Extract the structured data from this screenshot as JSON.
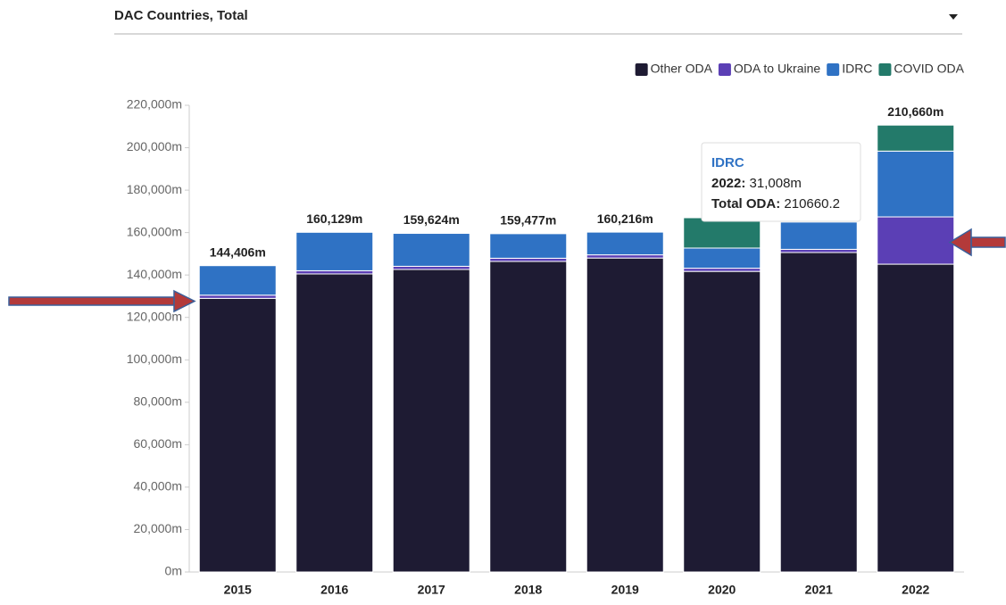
{
  "selector": {
    "label": "DAC Countries, Total"
  },
  "chart_data": {
    "type": "stacked-bar",
    "categories": [
      "2015",
      "2016",
      "2017",
      "2018",
      "2019",
      "2020",
      "2021",
      "2022"
    ],
    "series": [
      {
        "name": "Other ODA",
        "color": "#1e1b33",
        "values": [
          129000,
          140500,
          142600,
          146400,
          148000,
          141700,
          150600,
          145100
        ]
      },
      {
        "name": "ODA to Ukraine",
        "color": "#5b3fb5",
        "values": [
          1500,
          1500,
          1500,
          1500,
          1500,
          1500,
          1500,
          22300
        ]
      },
      {
        "name": "IDRC",
        "color": "#2f72c4",
        "values": [
          13906,
          18129,
          15524,
          11577,
          10716,
          9500,
          12900,
          31008
        ]
      },
      {
        "name": "COVID ODA",
        "color": "#237a6a",
        "values": [
          0,
          0,
          0,
          0,
          0,
          14300,
          19000,
          12252
        ]
      }
    ],
    "totals": {
      "values": [
        144406,
        160129,
        159624,
        159477,
        160216,
        null,
        null,
        210660
      ],
      "value_labels": [
        "144,406m",
        "160,129m",
        "159,624m",
        "159,477m",
        "160,216m",
        null,
        null,
        "210,660m"
      ]
    },
    "ylim": [
      0,
      220000
    ],
    "yticks": [
      {
        "value": 0,
        "label": "0m"
      },
      {
        "value": 20000,
        "label": "20,000m"
      },
      {
        "value": 40000,
        "label": "40,000m"
      },
      {
        "value": 60000,
        "label": "60,000m"
      },
      {
        "value": 80000,
        "label": "80,000m"
      },
      {
        "value": 100000,
        "label": "100,000m"
      },
      {
        "value": 120000,
        "label": "120,000m"
      },
      {
        "value": 140000,
        "label": "140,000m"
      },
      {
        "value": 160000,
        "label": "160,000m"
      },
      {
        "value": 180000,
        "label": "180,000m"
      },
      {
        "value": 200000,
        "label": "200,000m"
      },
      {
        "value": 220000,
        "label": "220,000m"
      }
    ],
    "grid": false,
    "tooltip": {
      "series": "IDRC",
      "label": "2022:",
      "value": "31,008m",
      "total_label": "Total ODA:",
      "total": "210660.2"
    }
  }
}
